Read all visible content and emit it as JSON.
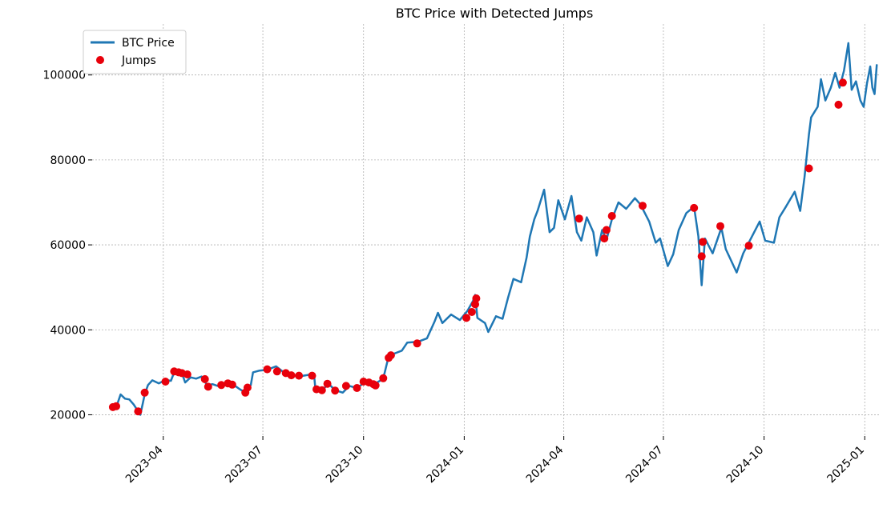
{
  "chart_data": {
    "type": "line",
    "title": "BTC Price with Detected Jumps",
    "xlabel": "",
    "ylabel": "",
    "ylim": [
      15000,
      112000
    ],
    "y_ticks": [
      {
        "value": 20000,
        "label": "20000"
      },
      {
        "value": 40000,
        "label": "40000"
      },
      {
        "value": 60000,
        "label": "60000"
      },
      {
        "value": 80000,
        "label": "80000"
      },
      {
        "value": 100000,
        "label": "100000"
      }
    ],
    "xlim": [
      "2023-01-26",
      "2025-01-14"
    ],
    "x_ticks": [
      {
        "date": "2023-04-01",
        "label": "2023-04"
      },
      {
        "date": "2023-07-01",
        "label": "2023-07"
      },
      {
        "date": "2023-10-01",
        "label": "2023-10"
      },
      {
        "date": "2024-01-01",
        "label": "2024-01"
      },
      {
        "date": "2024-04-01",
        "label": "2024-04"
      },
      {
        "date": "2024-07-01",
        "label": "2024-07"
      },
      {
        "date": "2024-10-01",
        "label": "2024-10"
      },
      {
        "date": "2025-01-01",
        "label": "2025-01"
      }
    ],
    "grid": true,
    "legend": {
      "position": "top-left",
      "entries": [
        {
          "label": "BTC Price",
          "kind": "line",
          "color": "#1f77b4"
        },
        {
          "label": "Jumps",
          "kind": "marker",
          "color": "#e8000b"
        }
      ]
    },
    "series": [
      {
        "name": "BTC Price",
        "color": "#1f77b4",
        "points": [
          [
            "2023-02-14",
            21800
          ],
          [
            "2023-02-18",
            22500
          ],
          [
            "2023-02-21",
            24800
          ],
          [
            "2023-02-25",
            23800
          ],
          [
            "2023-03-01",
            23600
          ],
          [
            "2023-03-05",
            22400
          ],
          [
            "2023-03-09",
            20800
          ],
          [
            "2023-03-11",
            20000
          ],
          [
            "2023-03-13",
            22300
          ],
          [
            "2023-03-15",
            24800
          ],
          [
            "2023-03-18",
            27000
          ],
          [
            "2023-03-22",
            28100
          ],
          [
            "2023-03-28",
            27400
          ],
          [
            "2023-04-03",
            28200
          ],
          [
            "2023-04-08",
            28000
          ],
          [
            "2023-04-11",
            30000
          ],
          [
            "2023-04-14",
            30400
          ],
          [
            "2023-04-18",
            29800
          ],
          [
            "2023-04-21",
            27600
          ],
          [
            "2023-04-26",
            28800
          ],
          [
            "2023-05-01",
            28500
          ],
          [
            "2023-05-06",
            29000
          ],
          [
            "2023-05-11",
            27000
          ],
          [
            "2023-05-16",
            27200
          ],
          [
            "2023-05-24",
            26500
          ],
          [
            "2023-05-30",
            27700
          ],
          [
            "2023-06-05",
            26900
          ],
          [
            "2023-06-10",
            26000
          ],
          [
            "2023-06-15",
            25200
          ],
          [
            "2023-06-20",
            27000
          ],
          [
            "2023-06-22",
            30000
          ],
          [
            "2023-06-28",
            30400
          ],
          [
            "2023-07-05",
            30600
          ],
          [
            "2023-07-13",
            31400
          ],
          [
            "2023-07-20",
            30000
          ],
          [
            "2023-07-28",
            29300
          ],
          [
            "2023-08-05",
            29100
          ],
          [
            "2023-08-12",
            29400
          ],
          [
            "2023-08-17",
            28700
          ],
          [
            "2023-08-18",
            26200
          ],
          [
            "2023-08-25",
            26000
          ],
          [
            "2023-08-30",
            27300
          ],
          [
            "2023-09-05",
            25800
          ],
          [
            "2023-09-12",
            25200
          ],
          [
            "2023-09-18",
            26800
          ],
          [
            "2023-09-25",
            26300
          ],
          [
            "2023-10-02",
            27600
          ],
          [
            "2023-10-10",
            27100
          ],
          [
            "2023-10-16",
            28000
          ],
          [
            "2023-10-20",
            29600
          ],
          [
            "2023-10-24",
            33800
          ],
          [
            "2023-10-30",
            34500
          ],
          [
            "2023-11-05",
            35100
          ],
          [
            "2023-11-10",
            37000
          ],
          [
            "2023-11-20",
            37200
          ],
          [
            "2023-11-28",
            38000
          ],
          [
            "2023-12-05",
            42000
          ],
          [
            "2023-12-08",
            44000
          ],
          [
            "2023-12-12",
            41600
          ],
          [
            "2023-12-20",
            43600
          ],
          [
            "2023-12-28",
            42300
          ],
          [
            "2024-01-04",
            44500
          ],
          [
            "2024-01-09",
            46800
          ],
          [
            "2024-01-11",
            48200
          ],
          [
            "2024-01-13",
            42800
          ],
          [
            "2024-01-20",
            41600
          ],
          [
            "2024-01-23",
            39500
          ],
          [
            "2024-01-30",
            43200
          ],
          [
            "2024-02-05",
            42600
          ],
          [
            "2024-02-10",
            47500
          ],
          [
            "2024-02-15",
            52000
          ],
          [
            "2024-02-22",
            51200
          ],
          [
            "2024-02-27",
            57000
          ],
          [
            "2024-03-01",
            62000
          ],
          [
            "2024-03-05",
            66000
          ],
          [
            "2024-03-08",
            68000
          ],
          [
            "2024-03-14",
            73000
          ],
          [
            "2024-03-19",
            63000
          ],
          [
            "2024-03-23",
            64000
          ],
          [
            "2024-03-27",
            70500
          ],
          [
            "2024-04-02",
            66000
          ],
          [
            "2024-04-08",
            71500
          ],
          [
            "2024-04-13",
            63000
          ],
          [
            "2024-04-17",
            61000
          ],
          [
            "2024-04-22",
            66500
          ],
          [
            "2024-04-28",
            63000
          ],
          [
            "2024-05-01",
            57500
          ],
          [
            "2024-05-06",
            63500
          ],
          [
            "2024-05-10",
            61200
          ],
          [
            "2024-05-15",
            66000
          ],
          [
            "2024-05-21",
            70000
          ],
          [
            "2024-05-28",
            68500
          ],
          [
            "2024-06-05",
            71000
          ],
          [
            "2024-06-10",
            69500
          ],
          [
            "2024-06-18",
            65500
          ],
          [
            "2024-06-24",
            60500
          ],
          [
            "2024-06-28",
            61500
          ],
          [
            "2024-07-05",
            55000
          ],
          [
            "2024-07-10",
            57800
          ],
          [
            "2024-07-15",
            63500
          ],
          [
            "2024-07-22",
            67500
          ],
          [
            "2024-07-29",
            69000
          ],
          [
            "2024-08-02",
            62000
          ],
          [
            "2024-08-05",
            50500
          ],
          [
            "2024-08-08",
            61500
          ],
          [
            "2024-08-15",
            58000
          ],
          [
            "2024-08-23",
            64000
          ],
          [
            "2024-08-27",
            59000
          ],
          [
            "2024-09-06",
            53500
          ],
          [
            "2024-09-12",
            58000
          ],
          [
            "2024-09-18",
            61000
          ],
          [
            "2024-09-27",
            65500
          ],
          [
            "2024-10-02",
            61000
          ],
          [
            "2024-10-10",
            60500
          ],
          [
            "2024-10-15",
            66500
          ],
          [
            "2024-10-21",
            69000
          ],
          [
            "2024-10-29",
            72500
          ],
          [
            "2024-11-03",
            68000
          ],
          [
            "2024-11-07",
            76000
          ],
          [
            "2024-11-11",
            86000
          ],
          [
            "2024-11-13",
            90000
          ],
          [
            "2024-11-19",
            92500
          ],
          [
            "2024-11-22",
            99000
          ],
          [
            "2024-11-26",
            94000
          ],
          [
            "2024-12-01",
            97000
          ],
          [
            "2024-12-05",
            100500
          ],
          [
            "2024-12-09",
            97000
          ],
          [
            "2024-12-13",
            101000
          ],
          [
            "2024-12-17",
            107500
          ],
          [
            "2024-12-20",
            96500
          ],
          [
            "2024-12-24",
            98500
          ],
          [
            "2024-12-28",
            94000
          ],
          [
            "2024-12-31",
            92500
          ],
          [
            "2025-01-03",
            98000
          ],
          [
            "2025-01-06",
            102000
          ],
          [
            "2025-01-08",
            97000
          ],
          [
            "2025-01-10",
            95500
          ],
          [
            "2025-01-12",
            102500
          ]
        ]
      },
      {
        "name": "Jumps",
        "color": "#e8000b",
        "kind": "scatter",
        "points": [
          [
            "2023-02-14",
            21800
          ],
          [
            "2023-02-17",
            22000
          ],
          [
            "2023-03-09",
            20800
          ],
          [
            "2023-03-15",
            25200
          ],
          [
            "2023-04-03",
            27800
          ],
          [
            "2023-04-11",
            30200
          ],
          [
            "2023-04-15",
            30000
          ],
          [
            "2023-04-18",
            29800
          ],
          [
            "2023-04-23",
            29500
          ],
          [
            "2023-05-09",
            28400
          ],
          [
            "2023-05-12",
            26600
          ],
          [
            "2023-05-24",
            27000
          ],
          [
            "2023-05-30",
            27400
          ],
          [
            "2023-06-03",
            27100
          ],
          [
            "2023-06-15",
            25200
          ],
          [
            "2023-06-17",
            26400
          ],
          [
            "2023-07-05",
            30700
          ],
          [
            "2023-07-14",
            30200
          ],
          [
            "2023-07-22",
            29800
          ],
          [
            "2023-07-27",
            29300
          ],
          [
            "2023-08-03",
            29200
          ],
          [
            "2023-08-15",
            29200
          ],
          [
            "2023-08-19",
            26000
          ],
          [
            "2023-08-24",
            25800
          ],
          [
            "2023-08-29",
            27300
          ],
          [
            "2023-09-05",
            25700
          ],
          [
            "2023-09-15",
            26800
          ],
          [
            "2023-09-25",
            26300
          ],
          [
            "2023-10-01",
            27800
          ],
          [
            "2023-10-06",
            27600
          ],
          [
            "2023-10-10",
            27200
          ],
          [
            "2023-10-12",
            26900
          ],
          [
            "2023-10-19",
            28600
          ],
          [
            "2023-10-24",
            33400
          ],
          [
            "2023-10-26",
            34000
          ],
          [
            "2023-11-19",
            36800
          ],
          [
            "2024-01-03",
            42800
          ],
          [
            "2024-01-08",
            44200
          ],
          [
            "2024-01-11",
            46000
          ],
          [
            "2024-01-12",
            47400
          ],
          [
            "2024-04-15",
            66200
          ],
          [
            "2024-05-08",
            61500
          ],
          [
            "2024-05-10",
            63500
          ],
          [
            "2024-05-15",
            66800
          ],
          [
            "2024-06-12",
            69200
          ],
          [
            "2024-07-29",
            68700
          ],
          [
            "2024-08-05",
            57300
          ],
          [
            "2024-08-06",
            60700
          ],
          [
            "2024-08-22",
            64400
          ],
          [
            "2024-09-17",
            59800
          ],
          [
            "2024-11-11",
            78000
          ],
          [
            "2024-12-08",
            93000
          ],
          [
            "2024-12-12",
            98200
          ]
        ]
      }
    ]
  }
}
